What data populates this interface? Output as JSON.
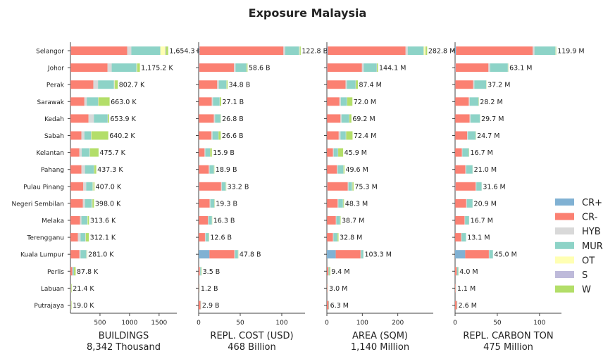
{
  "chart_data": {
    "type": "bar",
    "orientation": "horizontal",
    "stacked": true,
    "title": "Exposure Malaysia",
    "categories": [
      "Selangor",
      "Johor",
      "Perak",
      "Sarawak",
      "Kedah",
      "Sabah",
      "Kelantan",
      "Pahang",
      "Pulau Pinang",
      "Negeri Sembilan",
      "Melaka",
      "Terengganu",
      "Kuala Lumpur",
      "Perlis",
      "Labuan",
      "Putrajaya"
    ],
    "legend": {
      "position": "right",
      "entries": [
        {
          "name": "CR+",
          "color": "#80b1d3"
        },
        {
          "name": "CR-",
          "color": "#fb8072"
        },
        {
          "name": "HYB",
          "color": "#d9d9d9"
        },
        {
          "name": "MUR",
          "color": "#8dd3c7"
        },
        {
          "name": "OT",
          "color": "#ffffb3"
        },
        {
          "name": "S",
          "color": "#bebada"
        },
        {
          "name": "W",
          "color": "#b3de69"
        }
      ]
    },
    "panels": [
      {
        "xlabel": "BUILDINGS",
        "subtitle": "8,342 Thousand",
        "xlim": [
          0,
          1800
        ],
        "xticks": [
          500,
          1000,
          1500
        ],
        "totals_text": [
          "1,654.3 K",
          "1,175.2 K",
          "802.7 K",
          "663.0 K",
          "653.9 K",
          "640.2 K",
          "475.7 K",
          "437.3 K",
          "407.0 K",
          "398.0 K",
          "313.6 K",
          "312.1 K",
          "281.0 K",
          "87.8 K",
          "21.4 K",
          "19.0 K"
        ],
        "series": [
          {
            "name": "CR+",
            "values": [
              5,
              3,
              2,
              1,
              1,
              1,
              1,
              1,
              2,
              1,
              1,
              1,
              2,
              0,
              0,
              0
            ]
          },
          {
            "name": "CR-",
            "values": [
              955,
              625,
              385,
              235,
              305,
              185,
              150,
              185,
              215,
              210,
              160,
              125,
              150,
              30,
              5,
              5
            ]
          },
          {
            "name": "HYB",
            "values": [
              70,
              70,
              80,
              40,
              90,
              50,
              40,
              60,
              50,
              35,
              25,
              45,
              20,
              8,
              2,
              2
            ]
          },
          {
            "name": "MUR",
            "values": [
              490,
              420,
              270,
              190,
              230,
              110,
              130,
              150,
              110,
              115,
              100,
              80,
              95,
              20,
              5,
              5
            ]
          },
          {
            "name": "OT",
            "values": [
              84,
              7,
              10,
              2,
              2,
              4,
              5,
              1,
              10,
              7,
              6,
              6,
              4,
              0,
              0,
              0
            ]
          },
          {
            "name": "S",
            "values": [
              10,
              5,
              5,
              5,
              5,
              5,
              5,
              5,
              5,
              5,
              2,
              5,
              5,
              2,
              1,
              1
            ]
          },
          {
            "name": "W",
            "values": [
              40,
              45,
              50,
              190,
              21,
              285,
              145,
              35,
              15,
              25,
              20,
              50,
              5,
              28,
              8,
              6
            ]
          }
        ]
      },
      {
        "xlabel": "REPL. COST (USD)",
        "subtitle": "468 Billion",
        "xlim": [
          0,
          128
        ],
        "xticks": [
          0,
          50,
          100
        ],
        "totals_text": [
          "122.8 B",
          "58.6 B",
          "34.8 B",
          "27.1 B",
          "26.8 B",
          "26.6 B",
          "15.9 B",
          "18.9 B",
          "33.2 B",
          "19.3 B",
          "16.3 B",
          "12.6 B",
          "47.8 B",
          "3.5 B",
          "1.2 B",
          "2.9 B"
        ],
        "series": [
          {
            "name": "CR+",
            "values": [
              1,
              0.5,
              0.3,
              0.2,
              0.2,
              0.2,
              0.1,
              0.2,
              0.5,
              0.2,
              0.2,
              0.1,
              13,
              0,
              0,
              0
            ]
          },
          {
            "name": "CR-",
            "values": [
              101,
              42,
              22,
              15.5,
              18,
              15,
              7,
              12,
              26.5,
              13,
              11,
              7.5,
              30,
              1.5,
              0.6,
              2.2
            ]
          },
          {
            "name": "HYB",
            "values": [
              2,
              2,
              2,
              1.5,
              1.5,
              1.5,
              1,
              1,
              1,
              1,
              0.7,
              1,
              0.8,
              0.4,
              0.1,
              0.1
            ]
          },
          {
            "name": "MUR",
            "values": [
              17,
              13,
              9,
              8,
              6.5,
              7,
              5.5,
              5,
              4.5,
              4.5,
              4,
              3.5,
              3.5,
              1,
              0.4,
              0.4
            ]
          },
          {
            "name": "OT",
            "values": [
              0.5,
              0.1,
              0.1,
              0.1,
              0.1,
              0.1,
              0.1,
              0.1,
              0.2,
              0.1,
              0.1,
              0.1,
              0.1,
              0,
              0,
              0
            ]
          },
          {
            "name": "S",
            "values": [
              0.3,
              0.2,
              0.2,
              0.2,
              0.2,
              0.2,
              0.2,
              0.2,
              0.2,
              0.2,
              0.1,
              0.1,
              0.2,
              0.1,
              0.05,
              0.1
            ]
          },
          {
            "name": "W",
            "values": [
              1,
              1,
              1.2,
              1.6,
              0.3,
              2.6,
              2,
              0.4,
              0.3,
              0.3,
              0.2,
              0.3,
              0.2,
              0.5,
              0.05,
              0.1
            ]
          }
        ]
      },
      {
        "xlabel": "AREA (SQM)",
        "subtitle": "1,140 Million",
        "xlim": [
          0,
          300
        ],
        "xticks": [
          0,
          100,
          200
        ],
        "totals_text": [
          "282.8 M",
          "144.1 M",
          "87.4 M",
          "72.0 M",
          "69.2 M",
          "72.4 M",
          "45.9 M",
          "49.6 M",
          "75.3 M",
          "48.3 M",
          "38.7 M",
          "32.8 M",
          "103.3 M",
          "9.4 M",
          "3.0 M",
          "6.3 M"
        ],
        "series": [
          {
            "name": "CR+",
            "values": [
              2,
              1,
              0.6,
              0.4,
              0.4,
              0.4,
              0.2,
              0.4,
              1,
              0.4,
              0.4,
              0.2,
              25,
              0,
              0,
              0
            ]
          },
          {
            "name": "CR-",
            "values": [
              220,
              98,
              52,
              35,
              38,
              33,
              17,
              28,
              58,
              30,
              25,
              17,
              70,
              4,
              1.5,
              4.8
            ]
          },
          {
            "name": "HYB",
            "values": [
              6,
              5,
              4,
              4,
              3,
              5,
              2,
              2,
              2,
              2,
              1.5,
              1.5,
              1.5,
              1,
              0.3,
              0.2
            ]
          },
          {
            "name": "MUR",
            "values": [
              45,
              36,
              24,
              17,
              21,
              15,
              12,
              16,
              10,
              13,
              10,
              11,
              6,
              2,
              1,
              1
            ]
          },
          {
            "name": "OT",
            "values": [
              5,
              0.3,
              0.3,
              0.3,
              0.3,
              0.5,
              0.2,
              0.2,
              1,
              0.5,
              0.3,
              0.3,
              0.2,
              0,
              0,
              0
            ]
          },
          {
            "name": "S",
            "values": [
              1,
              0.8,
              0.7,
              0.6,
              0.7,
              0.6,
              0.5,
              0.5,
              0.5,
              0.5,
              0.3,
              0.4,
              0.4,
              0.2,
              0.1,
              0.1
            ]
          },
          {
            "name": "W",
            "values": [
              3.8,
              3,
              5.8,
              14.7,
              5.8,
              17.9,
              14,
              2.5,
              2.8,
              1.9,
              1.2,
              2.4,
              0.2,
              2.2,
              0.1,
              0.2
            ]
          }
        ]
      },
      {
        "xlabel": "REPL. CARBON TON",
        "subtitle": "475 Million",
        "xlim": [
          0,
          126
        ],
        "xticks": [
          0,
          50,
          100
        ],
        "totals_text": [
          "119.9 M",
          "63.1 M",
          "37.2 M",
          "28.2 M",
          "29.7 M",
          "24.7 M",
          "16.7 M",
          "21.0 M",
          "31.6 M",
          "20.9 M",
          "16.7 M",
          "13.1 M",
          "45.0 M",
          "4.0 M",
          "1.1 M",
          "2.6 M"
        ],
        "series": [
          {
            "name": "CR+",
            "values": [
              1,
              0.5,
              0.3,
              0.2,
              0.2,
              0.2,
              0.1,
              0.2,
              0.4,
              0.2,
              0.2,
              0.1,
              12,
              0,
              0,
              0
            ]
          },
          {
            "name": "CR-",
            "values": [
              91,
              39,
              21,
              16,
              17,
              14,
              8,
              12,
              24,
              13,
              11,
              7,
              28,
              2,
              0.6,
              2
            ]
          },
          {
            "name": "HYB",
            "values": [
              2,
              2,
              1.5,
              1.2,
              1.2,
              1,
              0.6,
              0.9,
              0.8,
              0.8,
              0.6,
              0.6,
              0.6,
              0.2,
              0.1,
              0.1
            ]
          },
          {
            "name": "MUR",
            "values": [
              25,
              21,
              14,
              10.3,
              11,
              9,
              7.5,
              7.6,
              6.2,
              6.7,
              4.8,
              5.2,
              4.2,
              1.5,
              0.35,
              0.45
            ]
          },
          {
            "name": "OT",
            "values": [
              0.4,
              0.1,
              0.1,
              0.1,
              0.1,
              0.1,
              0.1,
              0.1,
              0.1,
              0.1,
              0.1,
              0.1,
              0.1,
              0,
              0,
              0
            ]
          },
          {
            "name": "S",
            "values": [
              0.2,
              0.2,
              0.1,
              0.1,
              0.1,
              0.1,
              0.1,
              0.1,
              0.1,
              0.1,
              0.05,
              0.1,
              0.1,
              0.05,
              0.03,
              0.03
            ]
          },
          {
            "name": "W",
            "values": [
              0.3,
              0.3,
              0.2,
              0.3,
              0.1,
              0.3,
              0.3,
              0.1,
              0,
              0,
              0,
              0,
              0,
              0.25,
              0.02,
              0.02
            ]
          }
        ]
      }
    ]
  }
}
